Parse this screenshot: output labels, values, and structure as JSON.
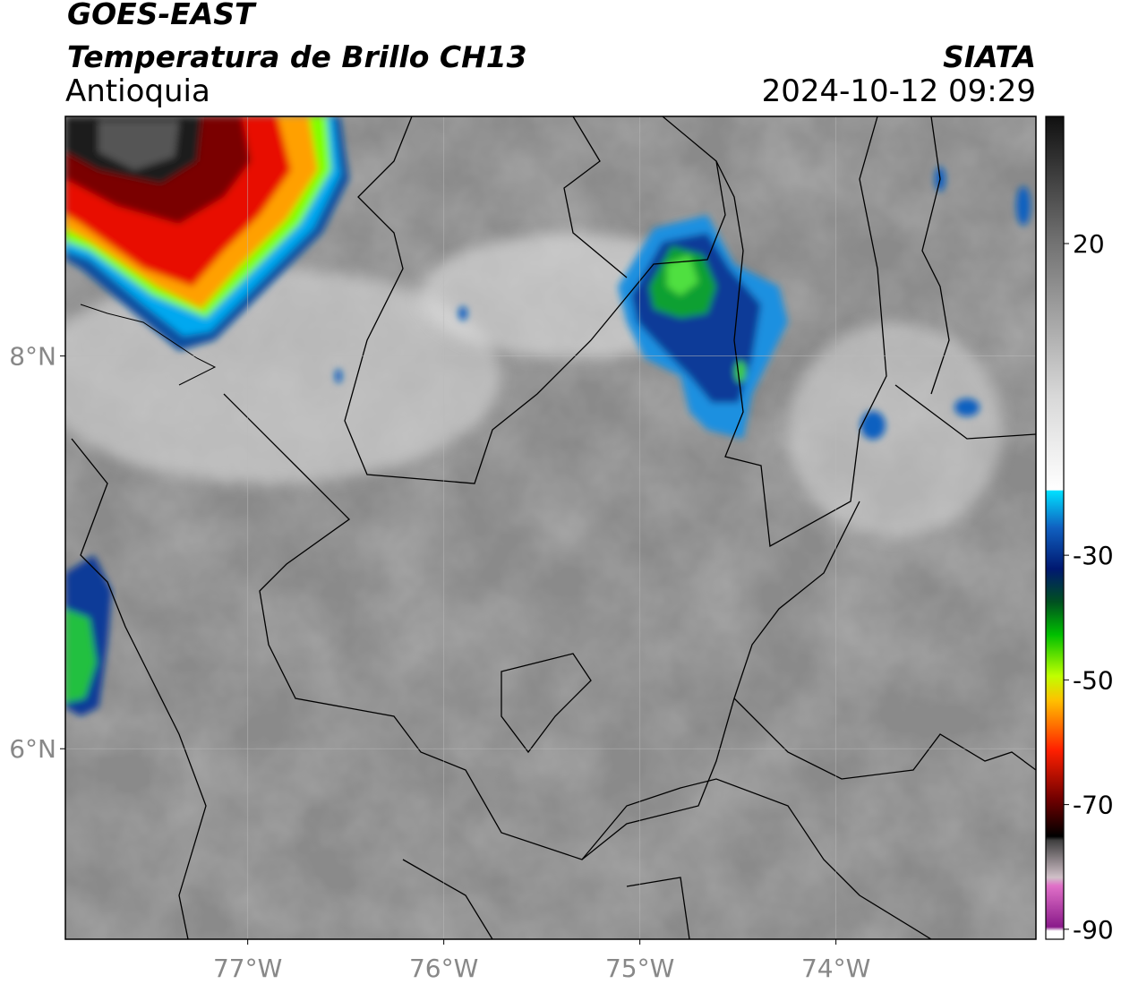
{
  "header": {
    "satellite": "GOES-EAST",
    "product": "Temperatura de Brillo CH13",
    "region": "Antioquia",
    "source": "SIATA",
    "datetime": "2024-10-12 09:29"
  },
  "map": {
    "lonlim": [
      -77.93,
      -72.98
    ],
    "latlim": [
      5.03,
      9.22
    ],
    "lon_ticks": [
      {
        "value": -77,
        "label": "77°W"
      },
      {
        "value": -76,
        "label": "76°W"
      },
      {
        "value": -75,
        "label": "75°W"
      },
      {
        "value": -74,
        "label": "74°W"
      }
    ],
    "lat_ticks": [
      {
        "value": 8,
        "label": "8°N"
      },
      {
        "value": 6,
        "label": "6°N"
      }
    ]
  },
  "colorbar": {
    "lim": [
      -91.6,
      40.4
    ],
    "ticks": [
      20,
      -30,
      -50,
      -70,
      -90
    ]
  }
}
